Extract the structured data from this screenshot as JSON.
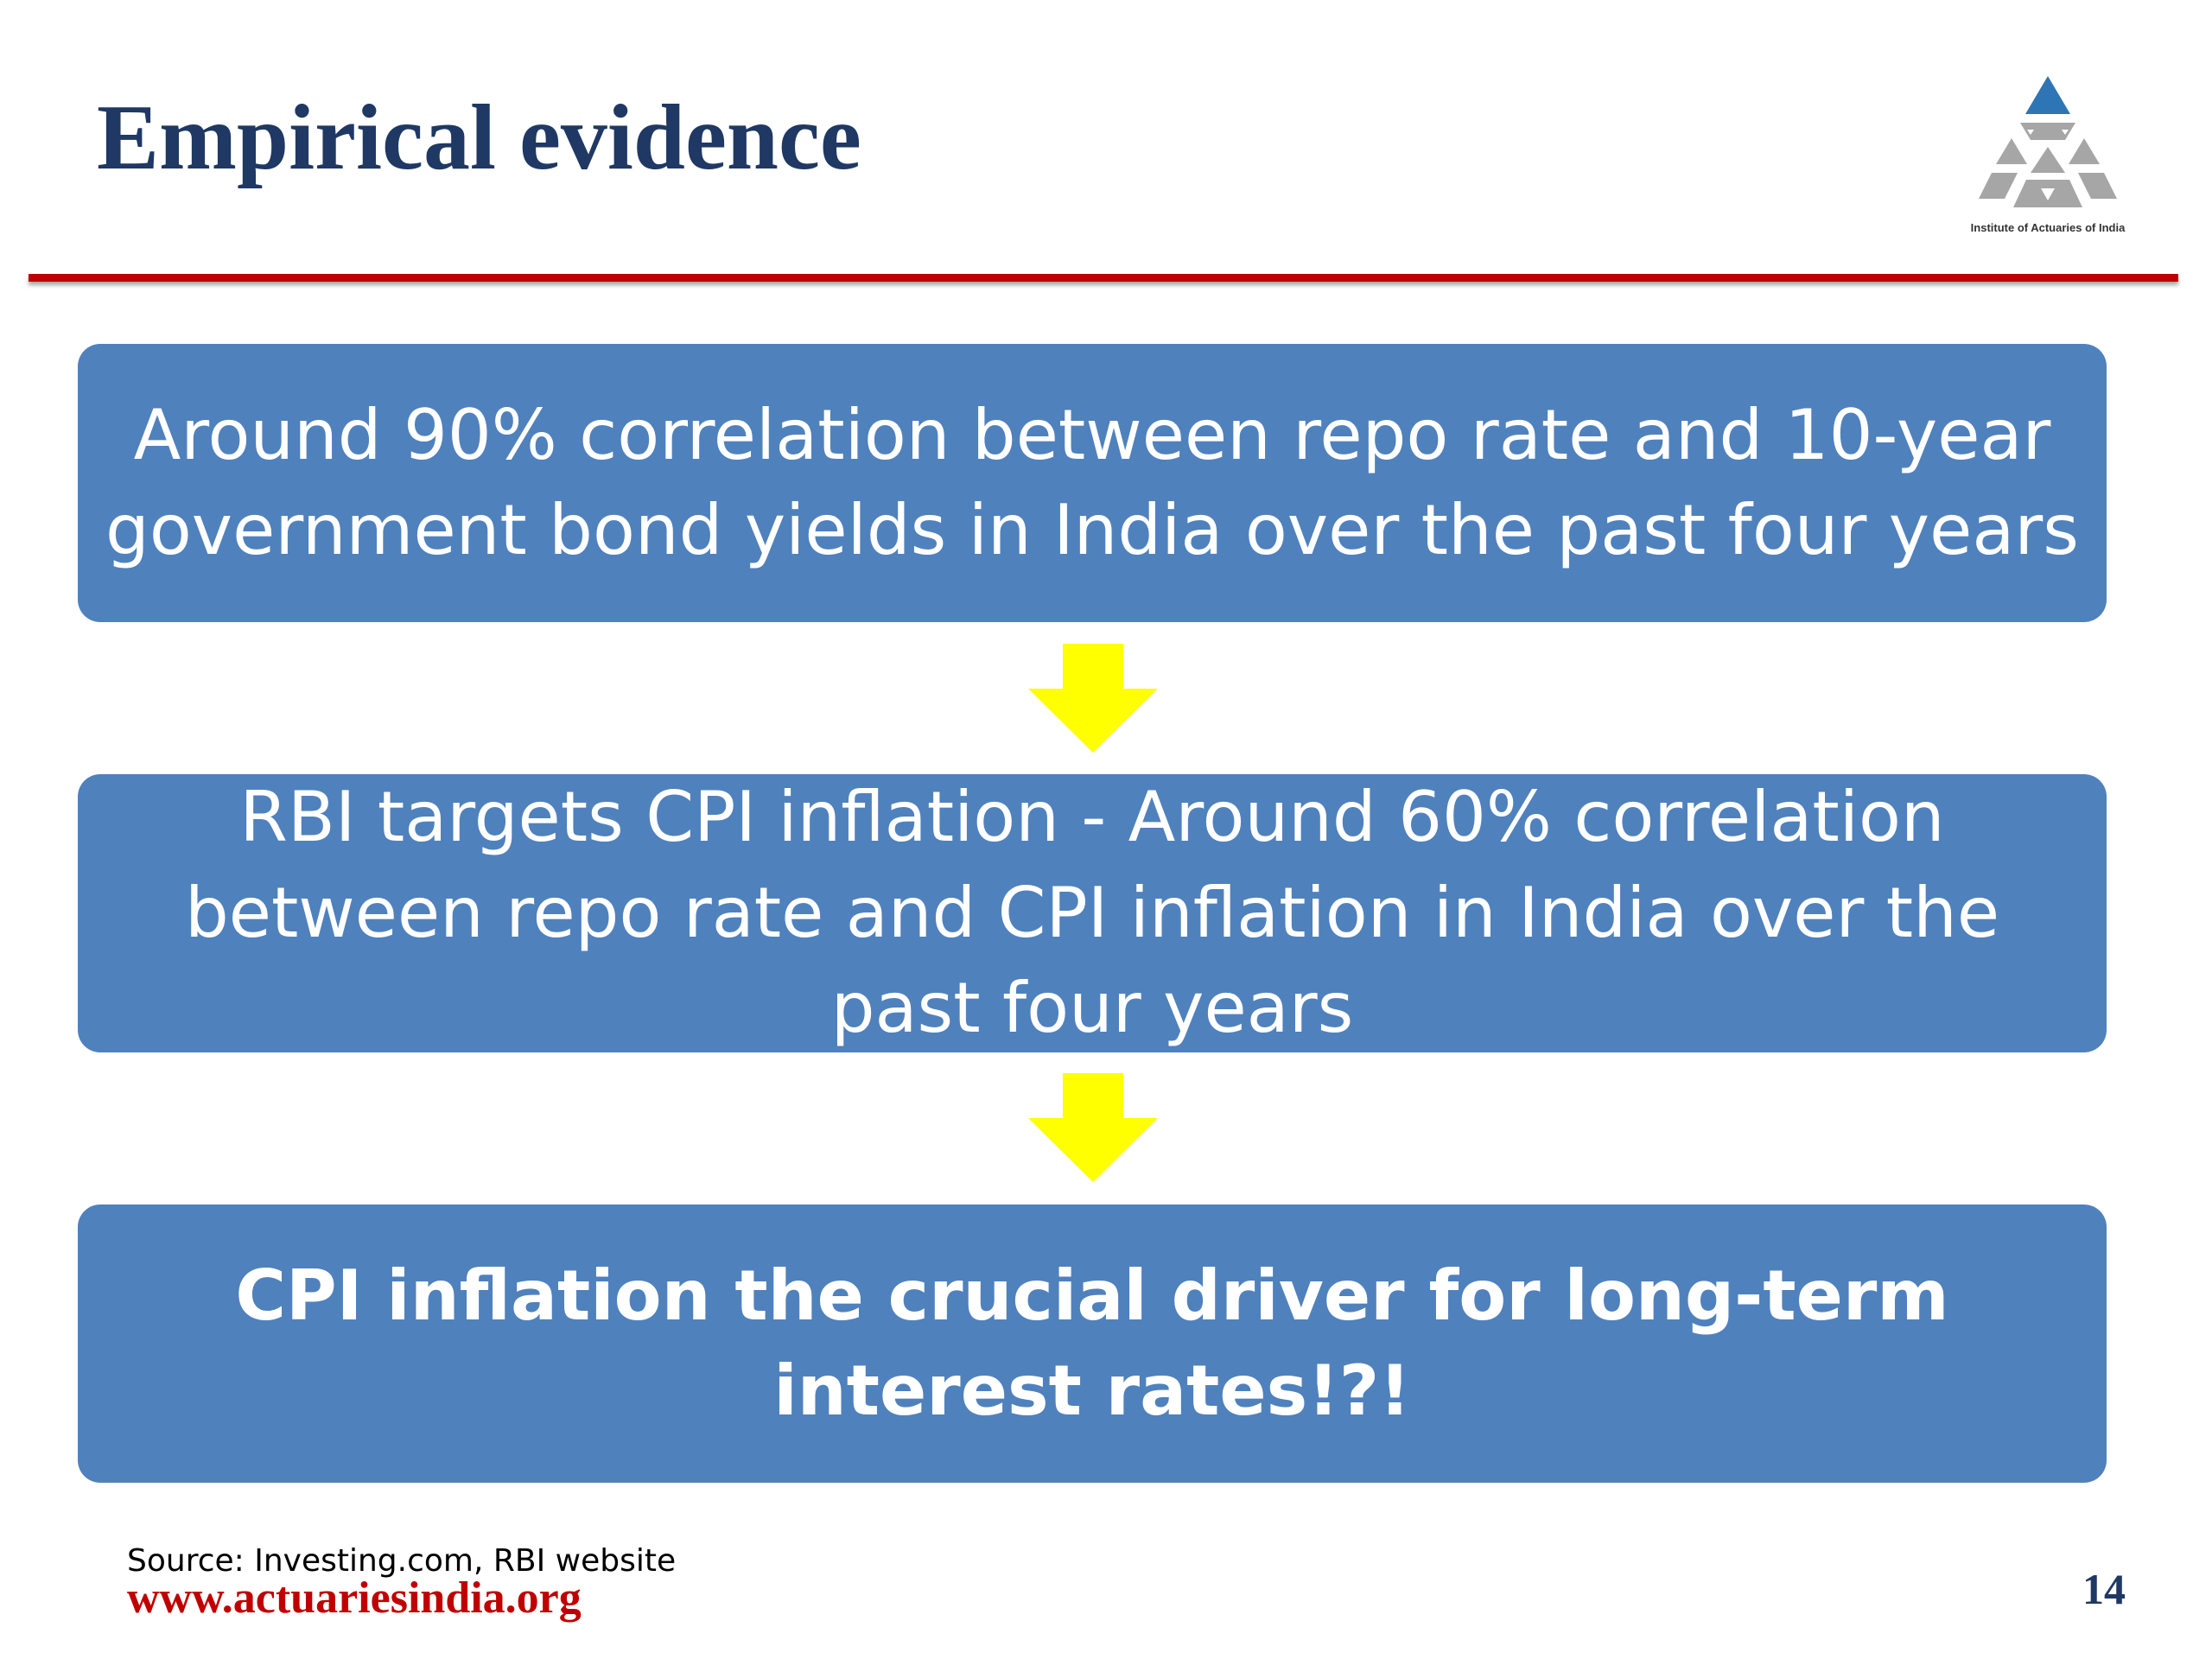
{
  "slide": {
    "title": "Empirical evidence",
    "logo_caption": "Institute of Actuaries of India",
    "boxes": [
      {
        "text": "Around 90% correlation between repo rate and 10-year government bond yields in India over the past four years"
      },
      {
        "text": "RBI targets CPI inflation - Around 60% correlation between repo rate and CPI inflation in India over the past four years"
      },
      {
        "text": "CPI inflation the crucial driver for long-term interest rates!?!"
      }
    ],
    "source": "Source: Investing.com, RBI website",
    "website": "www.actuariesindia.org",
    "page_number": "14"
  },
  "colors": {
    "title": "#1f3864",
    "rule": "#c00000",
    "box_fill": "#4f81bd",
    "box_text": "#ffffff",
    "arrow": "#ffff00",
    "website": "#c00000",
    "logo_blue": "#2e75b6",
    "logo_gray": "#a6a6a6"
  },
  "icons": {
    "logo": "institute-of-actuaries-logo",
    "arrows": "down-arrow-icon"
  }
}
